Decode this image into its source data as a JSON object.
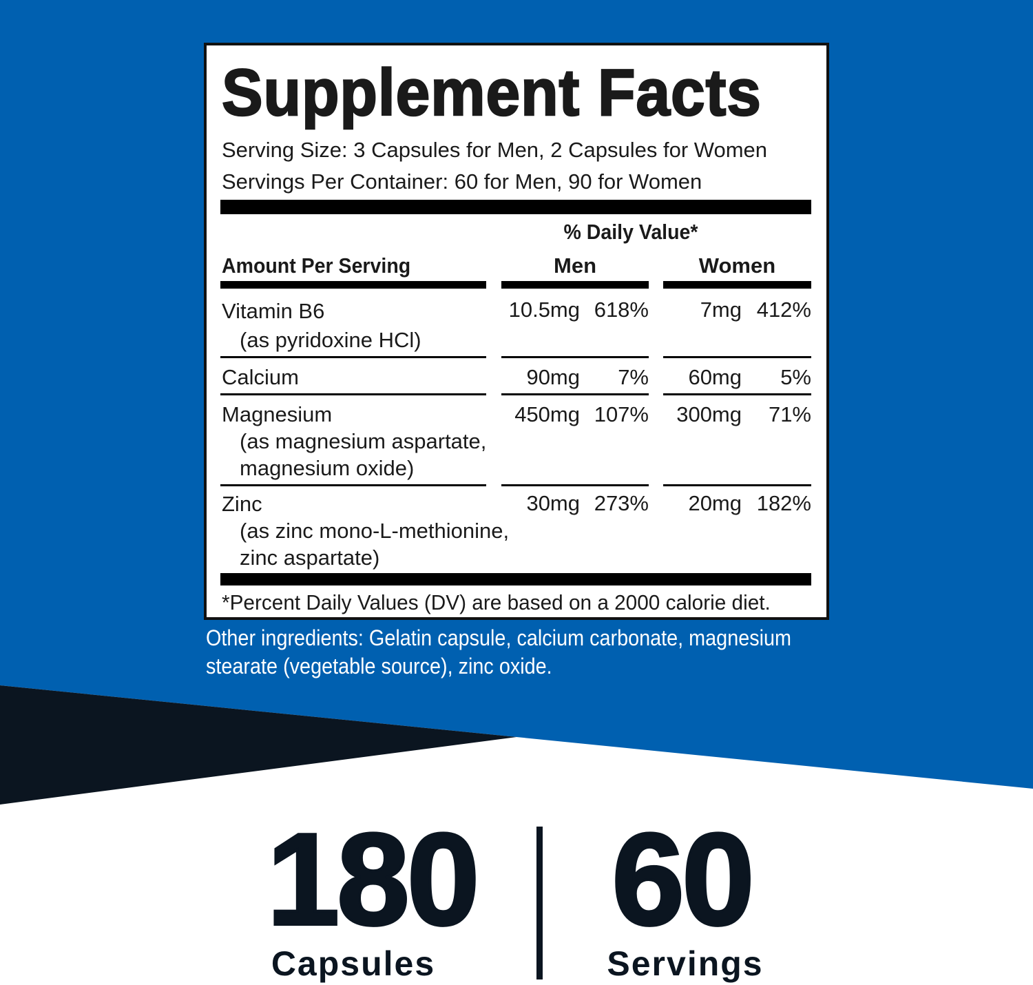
{
  "colors": {
    "brand_blue": "#0060b0",
    "navy": "#0b1520"
  },
  "facts": {
    "title": "Supplement Facts",
    "serving_size": "Serving Size: 3 Capsules for Men, 2 Capsules for Women",
    "servings_per_container": "Servings Per Container: 60 for Men, 90 for Women",
    "dv_header": "% Daily Value*",
    "amount_header": "Amount Per Serving",
    "men_header": "Men",
    "women_header": "Women",
    "rows": [
      {
        "name": "Vitamin B6",
        "sub": [
          "(as pyridoxine HCl)"
        ],
        "men_amt": "10.5mg",
        "men_dv": "618%",
        "women_amt": "7mg",
        "women_dv": "412%"
      },
      {
        "name": "Calcium",
        "sub": [],
        "men_amt": "90mg",
        "men_dv": "7%",
        "women_amt": "60mg",
        "women_dv": "5%"
      },
      {
        "name": "Magnesium",
        "sub": [
          "(as magnesium aspartate,",
          "magnesium oxide)"
        ],
        "men_amt": "450mg",
        "men_dv": "107%",
        "women_amt": "300mg",
        "women_dv": "71%"
      },
      {
        "name": "Zinc",
        "sub": [
          "(as zinc mono-L-methionine,",
          "zinc aspartate)"
        ],
        "men_amt": "30mg",
        "men_dv": "273%",
        "women_amt": "20mg",
        "women_dv": "182%"
      }
    ],
    "footnote": "*Percent Daily Values (DV) are based on a 2000 calorie diet."
  },
  "other_ingredients": [
    "Other ingredients: Gelatin capsule, calcium carbonate, magnesium",
    "stearate (vegetable source), zinc oxide."
  ],
  "stats": [
    {
      "value": "180",
      "label": "Capsules"
    },
    {
      "value": "60",
      "label": "Servings"
    }
  ]
}
